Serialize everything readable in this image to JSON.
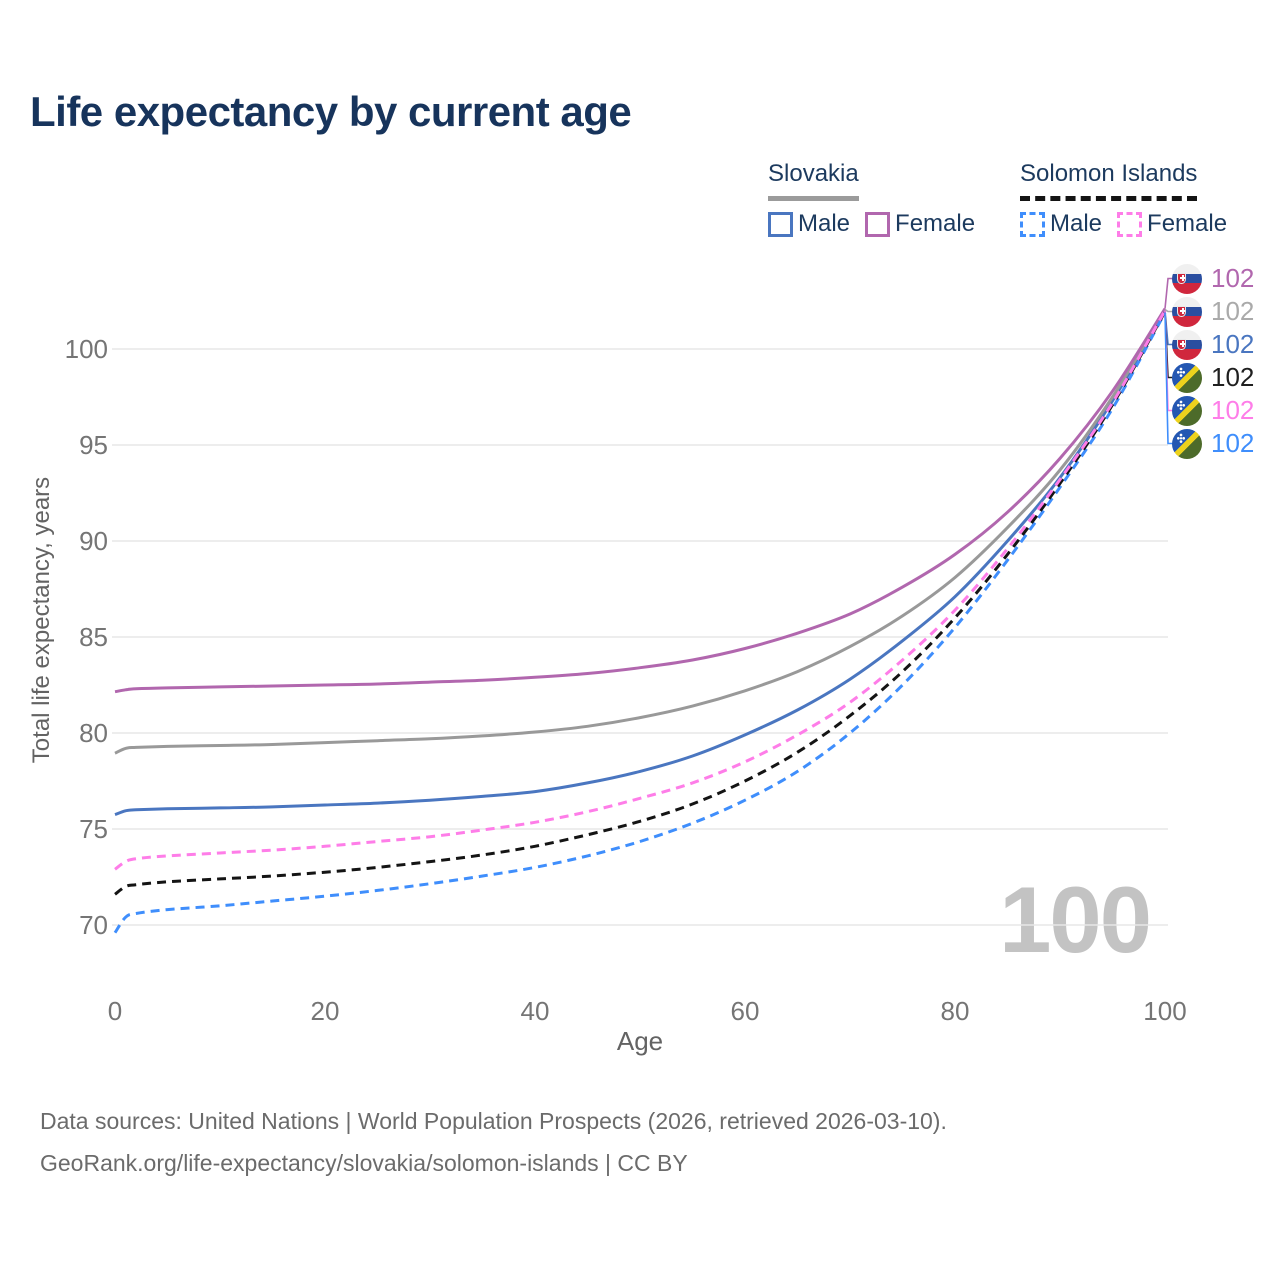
{
  "title": "Life expectancy by current age",
  "legend": {
    "groups": [
      {
        "label": "Slovakia",
        "line_style": "solid",
        "underline_color": "#9b9b9b",
        "items": [
          {
            "label": "Male",
            "color": "#4a76c0"
          },
          {
            "label": "Female",
            "color": "#b167ae"
          }
        ]
      },
      {
        "label": "Solomon Islands",
        "line_style": "dashed",
        "underline_color": "#141414",
        "items": [
          {
            "label": "Male",
            "color": "#3f8efc"
          },
          {
            "label": "Female",
            "color": "#fe7de8"
          }
        ]
      }
    ]
  },
  "watermark": "100",
  "flag_labels": {
    "rows": [
      {
        "flag": "slovakia",
        "value": "102",
        "color": "#b167ae",
        "series_index": 2
      },
      {
        "flag": "slovakia",
        "value": "102",
        "color": "#aaaaaa",
        "series_index": 1
      },
      {
        "flag": "slovakia",
        "value": "102",
        "color": "#4a76c0",
        "series_index": 0
      },
      {
        "flag": "solomon-islands",
        "value": "102",
        "color": "#1f1f1f",
        "series_index": 4
      },
      {
        "flag": "solomon-islands",
        "value": "102",
        "color": "#fe7de8",
        "series_index": 5
      },
      {
        "flag": "solomon-islands",
        "value": "102",
        "color": "#3f8efc",
        "series_index": 3
      }
    ]
  },
  "chart_data": {
    "type": "line",
    "title": "Life expectancy by current age",
    "xlabel": "Age",
    "ylabel": "Total life expectancy, years",
    "xlim": [
      0,
      100
    ],
    "ylim": [
      69,
      103
    ],
    "xticks": [
      0,
      20,
      40,
      60,
      80,
      100
    ],
    "yticks": [
      70,
      75,
      80,
      85,
      90,
      95,
      100
    ],
    "grid": "horizontal",
    "legend_position": "top-right",
    "x": [
      0,
      1,
      2,
      5,
      10,
      15,
      20,
      25,
      30,
      35,
      40,
      45,
      50,
      55,
      60,
      65,
      70,
      75,
      80,
      85,
      90,
      95,
      100
    ],
    "series": [
      {
        "name": "Slovakia Male",
        "country": "Slovakia",
        "sex": "male",
        "color": "#4a76c0",
        "dash": null,
        "values": [
          75.75,
          75.95,
          76.0,
          76.05,
          76.1,
          76.15,
          76.25,
          76.35,
          76.5,
          76.7,
          76.95,
          77.4,
          78.0,
          78.8,
          79.9,
          81.2,
          82.8,
          84.8,
          87.1,
          90.0,
          93.3,
          97.3,
          102.0
        ]
      },
      {
        "name": "Slovakia Overall",
        "country": "Slovakia",
        "sex": "all",
        "color": "#999999",
        "dash": null,
        "values": [
          78.95,
          79.2,
          79.25,
          79.3,
          79.35,
          79.4,
          79.5,
          79.6,
          79.7,
          79.85,
          80.05,
          80.35,
          80.8,
          81.4,
          82.2,
          83.2,
          84.5,
          86.1,
          88.1,
          90.7,
          93.7,
          97.5,
          102.05
        ]
      },
      {
        "name": "Slovakia Female",
        "country": "Slovakia",
        "sex": "female",
        "color": "#b167ae",
        "dash": null,
        "values": [
          82.15,
          82.25,
          82.3,
          82.35,
          82.4,
          82.45,
          82.5,
          82.55,
          82.65,
          82.75,
          82.9,
          83.1,
          83.4,
          83.8,
          84.4,
          85.2,
          86.2,
          87.6,
          89.3,
          91.5,
          94.3,
          97.8,
          102.1
        ]
      },
      {
        "name": "Solomon Islands Male",
        "country": "Solomon Islands",
        "sex": "male",
        "color": "#3f8efc",
        "dash": "9 6",
        "values": [
          69.6,
          70.4,
          70.6,
          70.8,
          71.0,
          71.25,
          71.5,
          71.8,
          72.15,
          72.55,
          73.0,
          73.6,
          74.35,
          75.3,
          76.5,
          78.0,
          80.0,
          82.5,
          85.5,
          89.0,
          92.8,
          96.9,
          101.9
        ]
      },
      {
        "name": "Solomon Islands Overall",
        "country": "Solomon Islands",
        "sex": "all",
        "color": "#141414",
        "dash": "9 6",
        "values": [
          71.6,
          72.0,
          72.1,
          72.25,
          72.4,
          72.55,
          72.75,
          73.0,
          73.3,
          73.65,
          74.1,
          74.7,
          75.4,
          76.3,
          77.5,
          79.0,
          80.9,
          83.2,
          86.0,
          89.3,
          93.0,
          97.1,
          101.95
        ]
      },
      {
        "name": "Solomon Islands Female",
        "country": "Solomon Islands",
        "sex": "female",
        "color": "#fe7de8",
        "dash": "9 6",
        "values": [
          72.9,
          73.3,
          73.45,
          73.6,
          73.75,
          73.9,
          74.1,
          74.35,
          74.6,
          74.95,
          75.35,
          75.9,
          76.6,
          77.4,
          78.5,
          79.9,
          81.6,
          83.8,
          86.4,
          89.6,
          93.2,
          97.2,
          102.0
        ]
      }
    ]
  },
  "footer": {
    "line1": "Data sources: United Nations | World Population Prospects (2026, retrieved 2026-03-10).",
    "line2": "GeoRank.org/life-expectancy/slovakia/solomon-islands | CC BY"
  }
}
